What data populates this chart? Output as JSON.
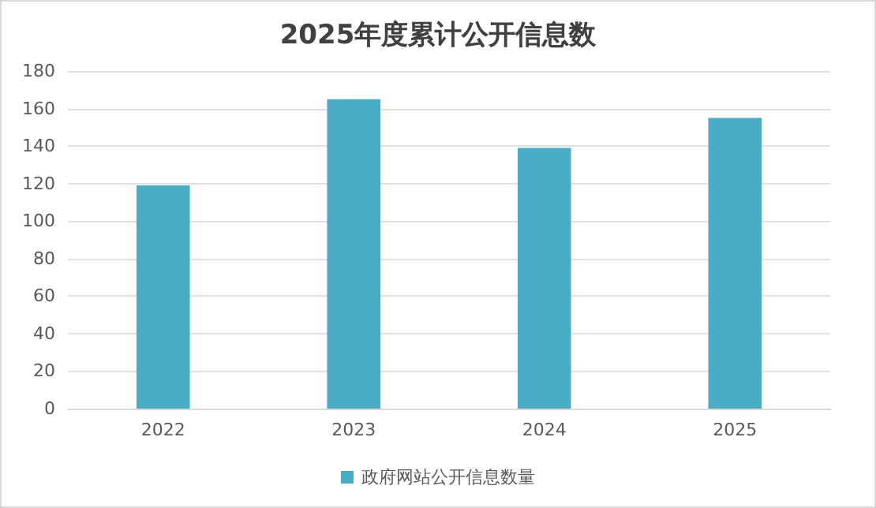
{
  "chart_data": {
    "type": "bar",
    "title": "2025年度累计公开信息数",
    "categories": [
      "2022",
      "2023",
      "2024",
      "2025"
    ],
    "series": [
      {
        "name": "政府网站公开信息数量",
        "color": "#4bacc6",
        "values": [
          119,
          165,
          139,
          155
        ]
      }
    ],
    "ylim": [
      0,
      180
    ],
    "yticks": [
      0,
      20,
      40,
      60,
      80,
      100,
      120,
      140,
      160,
      180
    ],
    "grid": "y",
    "legend": "bottom"
  }
}
